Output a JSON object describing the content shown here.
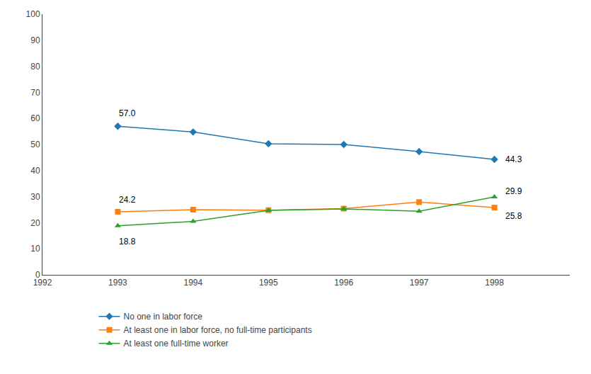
{
  "chart_data": {
    "type": "line",
    "x": [
      1993,
      1994,
      1995,
      1996,
      1997,
      1998
    ],
    "series": [
      {
        "name": "No one in labor force",
        "values": [
          57.0,
          54.8,
          50.3,
          50.0,
          47.3,
          44.3
        ],
        "marker": "diamond"
      },
      {
        "name": "At least one in labor force, no full-time participants",
        "values": [
          24.2,
          25.0,
          24.8,
          25.4,
          27.9,
          25.8
        ],
        "marker": "square"
      },
      {
        "name": "At least one full-time worker",
        "values": [
          18.8,
          20.5,
          24.7,
          25.3,
          24.4,
          29.9
        ],
        "marker": "triangle-up"
      }
    ],
    "annotations": [
      {
        "text": "57.0",
        "x": 1993,
        "y": 57.0
      },
      {
        "text": "24.2",
        "x": 1993,
        "y": 24.2
      },
      {
        "text": "18.8",
        "x": 1993,
        "y": 18.8
      },
      {
        "text": "44.3",
        "x": 1998,
        "y": 44.3
      },
      {
        "text": "25.8",
        "x": 1998,
        "y": 25.8
      },
      {
        "text": "29.9",
        "x": 1998,
        "y": 29.9
      }
    ],
    "xlim": [
      1992,
      1999.0
    ],
    "xticks": [
      1992,
      1993,
      1994,
      1995,
      1996,
      1997,
      1998
    ],
    "ylim": [
      0,
      100
    ],
    "yticks": [
      0,
      10,
      20,
      30,
      40,
      50,
      60,
      70,
      80,
      90,
      100
    ],
    "grid": false,
    "legend": "bottom"
  }
}
